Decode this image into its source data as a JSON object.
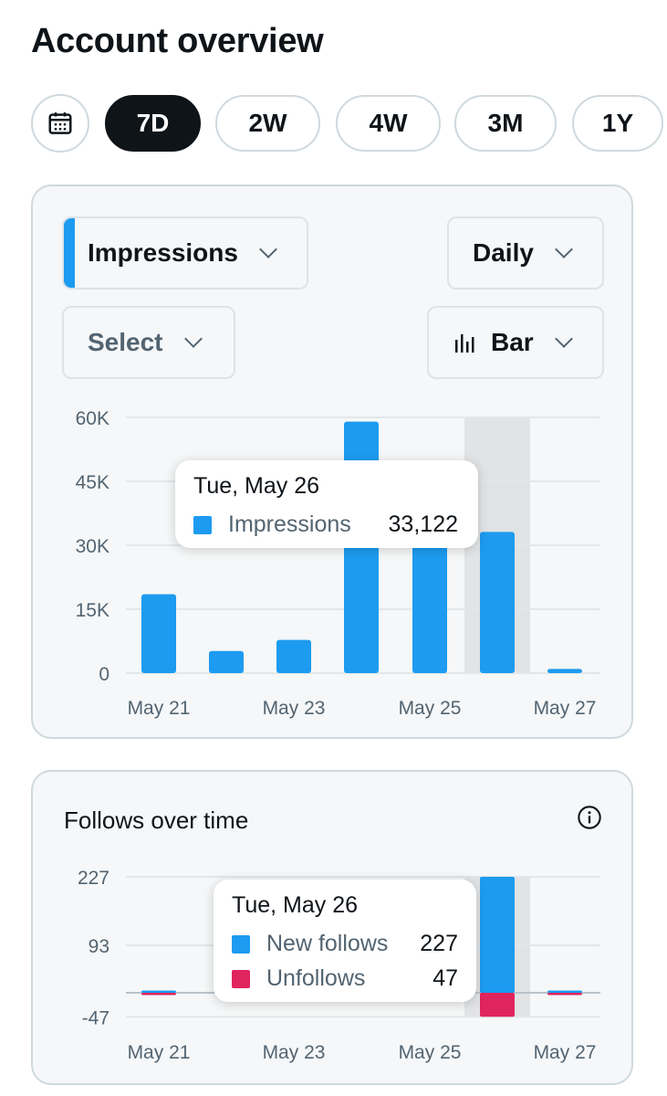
{
  "header": {
    "title": "Account overview"
  },
  "range_tabs": [
    {
      "label": "7D",
      "active": true
    },
    {
      "label": "2W",
      "active": false
    },
    {
      "label": "4W",
      "active": false
    },
    {
      "label": "3M",
      "active": false
    },
    {
      "label": "1Y",
      "active": false
    }
  ],
  "impressions_card": {
    "metric_select": "Impressions",
    "interval_select": "Daily",
    "compare_select": "Select",
    "chart_type_select": "Bar",
    "tooltip": {
      "date": "Tue, May 26",
      "label": "Impressions",
      "value": "33,122"
    }
  },
  "follows_card": {
    "title": "Follows over time",
    "tooltip": {
      "date": "Tue, May 26",
      "rows": [
        {
          "label": "New follows",
          "value": "227"
        },
        {
          "label": "Unfollows",
          "value": "47"
        }
      ]
    }
  },
  "colors": {
    "blue": "#1d9bf0",
    "red": "#e0245e",
    "highlight": "#e1e3e5"
  },
  "chart_data": [
    {
      "type": "bar",
      "categories": [
        "May 21",
        "May 22",
        "May 23",
        "May 24",
        "May 25",
        "May 26",
        "May 27"
      ],
      "x_tick_labels": [
        "May 21",
        "May 23",
        "May 25",
        "May 27"
      ],
      "y_tick_labels": [
        "0",
        "15K",
        "30K",
        "45K",
        "60K"
      ],
      "ylim": [
        0,
        60000
      ],
      "series": [
        {
          "name": "Impressions",
          "values": [
            18500,
            5200,
            7800,
            59000,
            31000,
            33122,
            1000
          ]
        }
      ],
      "highlight_category": "May 26"
    },
    {
      "type": "bar",
      "categories": [
        "May 21",
        "May 22",
        "May 23",
        "May 24",
        "May 25",
        "May 26",
        "May 27"
      ],
      "x_tick_labels": [
        "May 21",
        "May 23",
        "May 25",
        "May 27"
      ],
      "y_tick_labels": [
        "-47",
        "93",
        "227"
      ],
      "ylim": [
        -47,
        227
      ],
      "series": [
        {
          "name": "New follows",
          "values": [
            3,
            0,
            0,
            0,
            0,
            227,
            1
          ]
        },
        {
          "name": "Unfollows",
          "values": [
            -1,
            0,
            0,
            0,
            -16,
            -47,
            -1
          ]
        }
      ],
      "highlight_category": "May 26"
    }
  ]
}
